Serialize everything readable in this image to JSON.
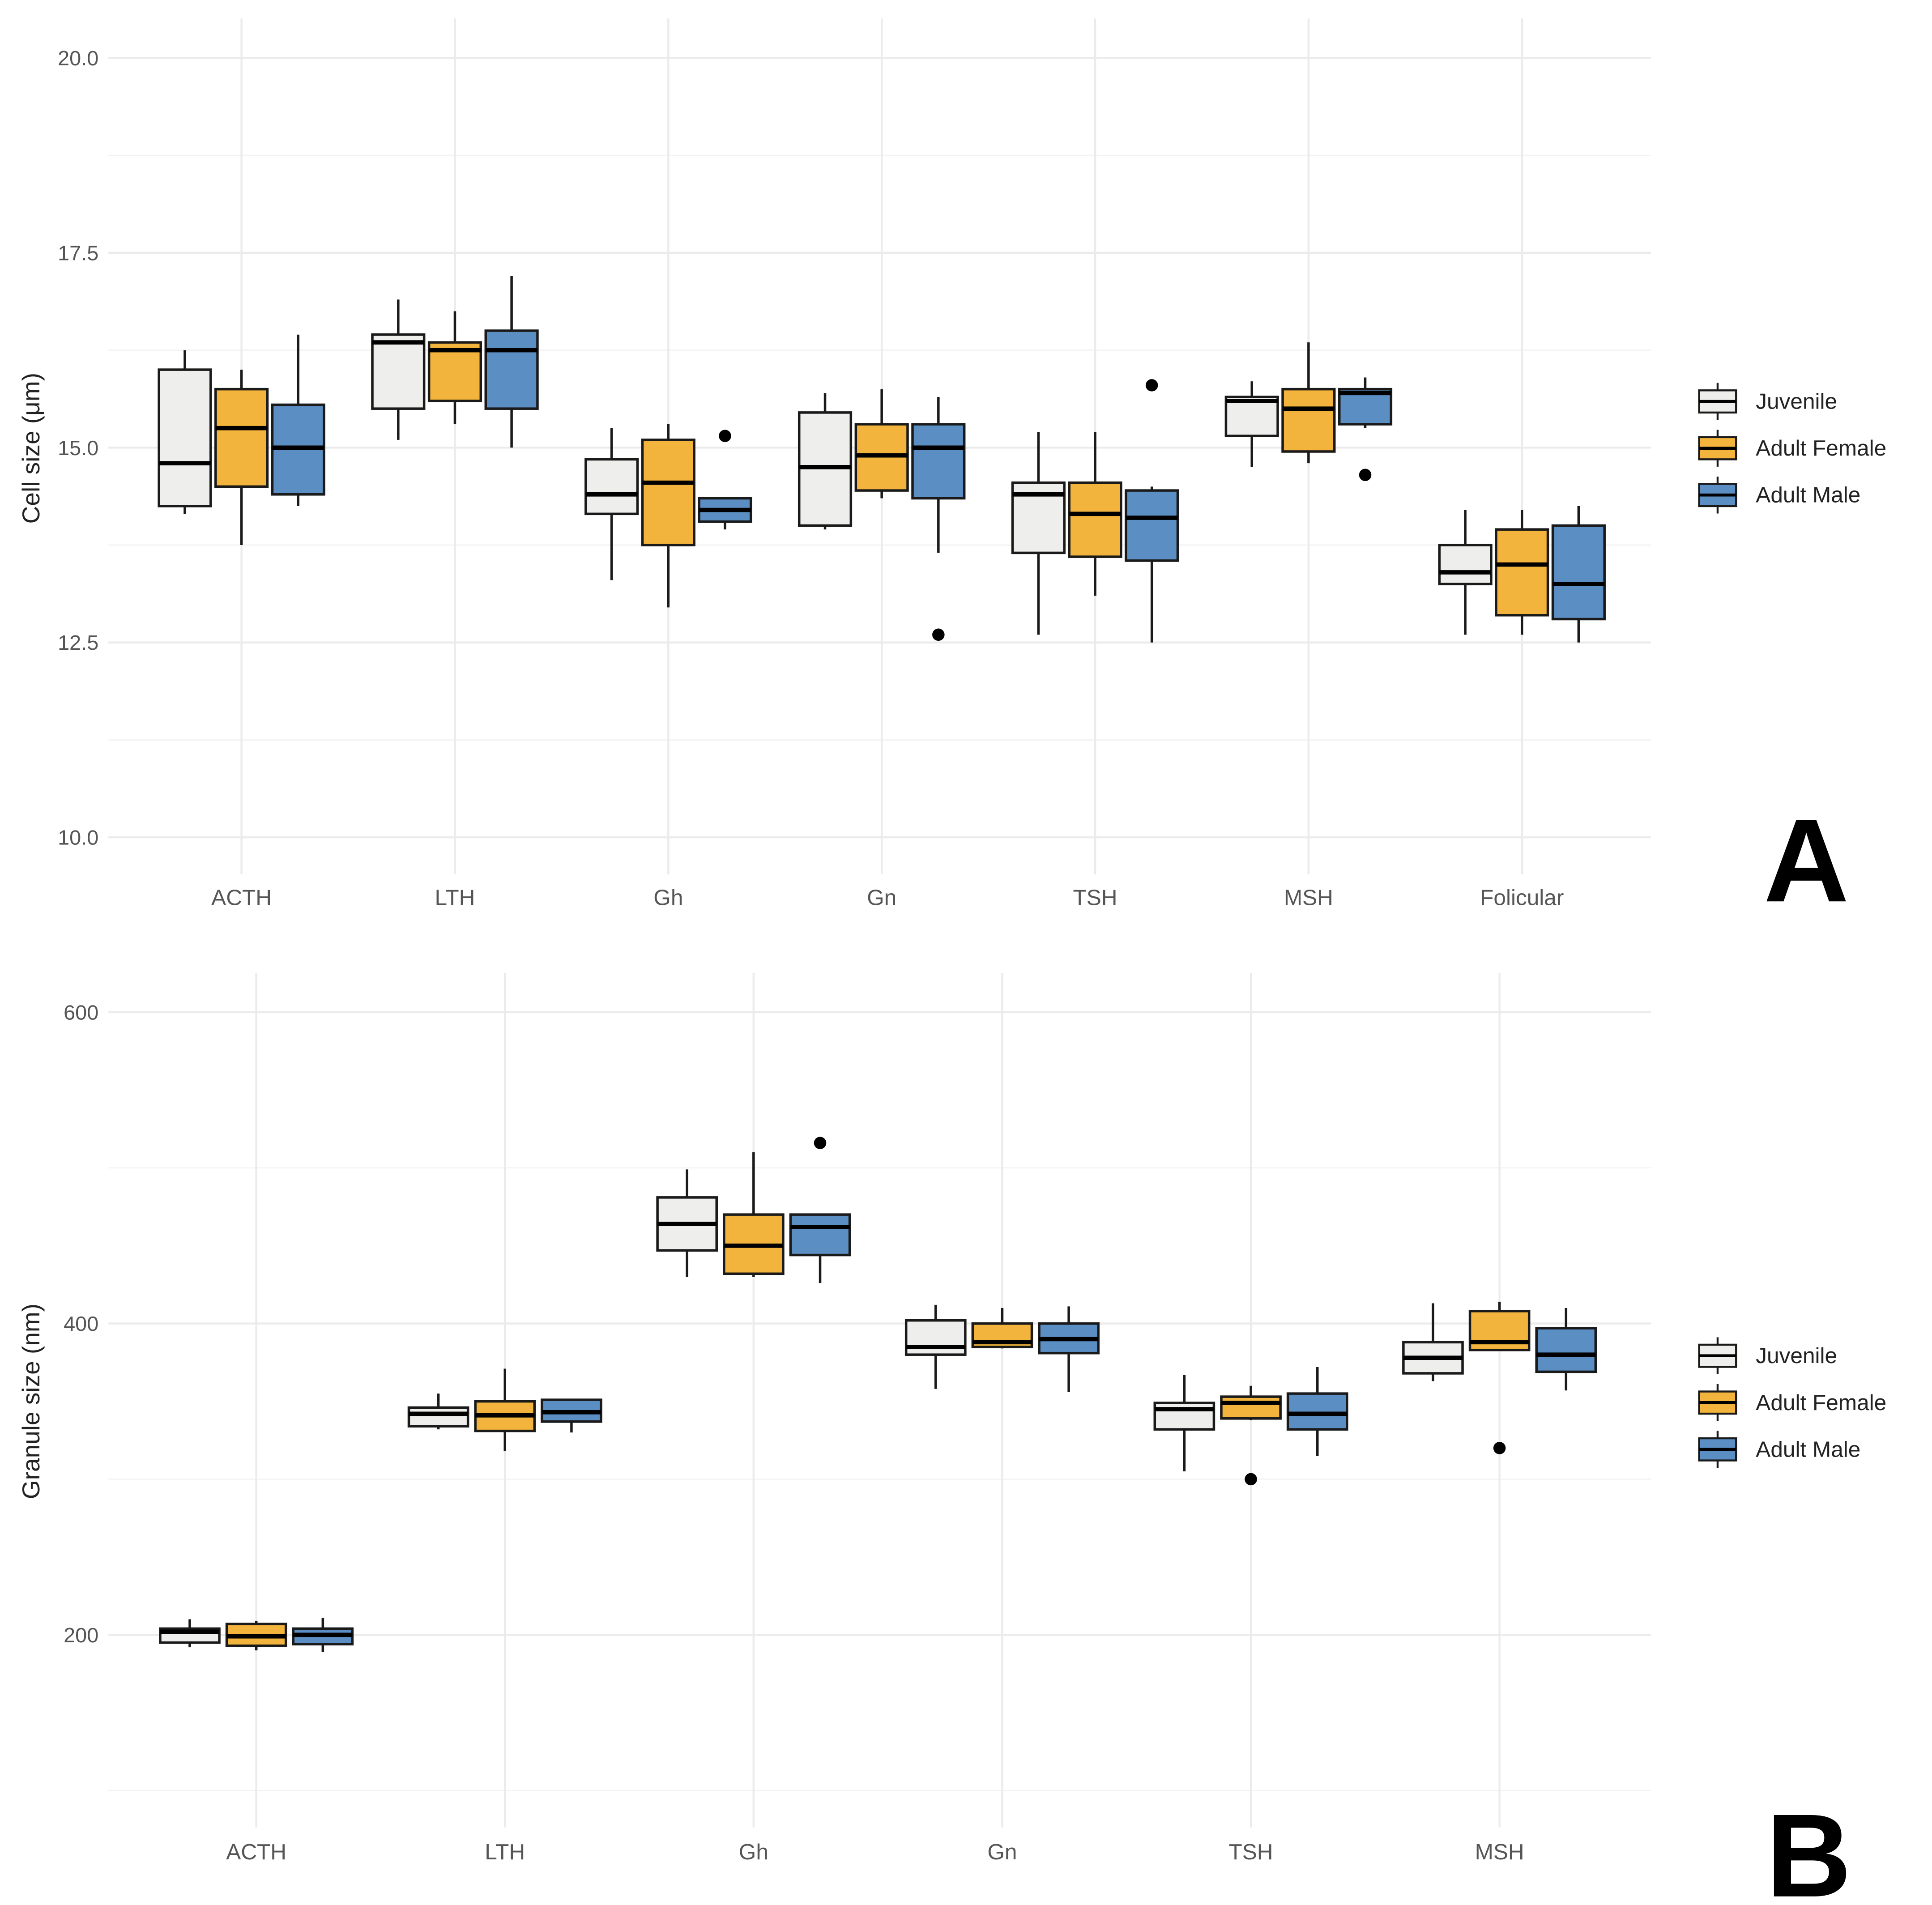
{
  "legend": {
    "entries": [
      {
        "name": "Juvenile",
        "color": "#eeeeec"
      },
      {
        "name": "Adult Female",
        "color": "#f2b43c"
      },
      {
        "name": "Adult Male",
        "color": "#5b8ec2"
      }
    ]
  },
  "chart_data": [
    {
      "type": "box",
      "panel_label": "A",
      "ylabel": "Cell size (μm)",
      "xlabel": "",
      "ylim": [
        10.0,
        20.0
      ],
      "yticks": [
        "10.0",
        "12.5",
        "15.0",
        "17.5",
        "20.0"
      ],
      "categories": [
        "ACTH",
        "LTH",
        "Gh",
        "Gn",
        "TSH",
        "MSH",
        "Folicular"
      ],
      "series": [
        {
          "name": "Juvenile",
          "boxes": [
            {
              "min": 14.15,
              "q1": 14.25,
              "median": 14.8,
              "q3": 16.0,
              "max": 16.25,
              "outliers": []
            },
            {
              "min": 15.1,
              "q1": 15.5,
              "median": 16.35,
              "q3": 16.45,
              "max": 16.9,
              "outliers": []
            },
            {
              "min": 13.3,
              "q1": 14.15,
              "median": 14.4,
              "q3": 14.85,
              "max": 15.25,
              "outliers": []
            },
            {
              "min": 13.95,
              "q1": 14.0,
              "median": 14.75,
              "q3": 15.45,
              "max": 15.7,
              "outliers": []
            },
            {
              "min": 12.6,
              "q1": 13.65,
              "median": 14.4,
              "q3": 14.55,
              "max": 15.2,
              "outliers": []
            },
            {
              "min": 14.75,
              "q1": 15.15,
              "median": 15.6,
              "q3": 15.65,
              "max": 15.85,
              "outliers": []
            },
            {
              "min": 12.6,
              "q1": 13.25,
              "median": 13.4,
              "q3": 13.75,
              "max": 14.2,
              "outliers": []
            }
          ]
        },
        {
          "name": "Adult Female",
          "boxes": [
            {
              "min": 13.75,
              "q1": 14.5,
              "median": 15.25,
              "q3": 15.75,
              "max": 16.0,
              "outliers": []
            },
            {
              "min": 15.3,
              "q1": 15.6,
              "median": 16.25,
              "q3": 16.35,
              "max": 16.75,
              "outliers": []
            },
            {
              "min": 12.95,
              "q1": 13.75,
              "median": 14.55,
              "q3": 15.1,
              "max": 15.3,
              "outliers": []
            },
            {
              "min": 14.35,
              "q1": 14.45,
              "median": 14.9,
              "q3": 15.3,
              "max": 15.75,
              "outliers": []
            },
            {
              "min": 13.1,
              "q1": 13.6,
              "median": 14.15,
              "q3": 14.55,
              "max": 15.2,
              "outliers": []
            },
            {
              "min": 14.8,
              "q1": 14.95,
              "median": 15.5,
              "q3": 15.75,
              "max": 16.35,
              "outliers": []
            },
            {
              "min": 12.6,
              "q1": 12.85,
              "median": 13.5,
              "q3": 13.95,
              "max": 14.2,
              "outliers": []
            }
          ]
        },
        {
          "name": "Adult Male",
          "boxes": [
            {
              "min": 14.25,
              "q1": 14.4,
              "median": 15.0,
              "q3": 15.55,
              "max": 16.45,
              "outliers": []
            },
            {
              "min": 15.0,
              "q1": 15.5,
              "median": 16.25,
              "q3": 16.5,
              "max": 17.2,
              "outliers": []
            },
            {
              "min": 13.95,
              "q1": 14.05,
              "median": 14.2,
              "q3": 14.35,
              "max": 14.35,
              "outliers": [
                15.15
              ]
            },
            {
              "min": 13.65,
              "q1": 14.35,
              "median": 15.0,
              "q3": 15.3,
              "max": 15.65,
              "outliers": [
                12.6
              ]
            },
            {
              "min": 12.5,
              "q1": 13.55,
              "median": 14.1,
              "q3": 14.45,
              "max": 14.5,
              "outliers": [
                15.8
              ]
            },
            {
              "min": 15.25,
              "q1": 15.3,
              "median": 15.7,
              "q3": 15.75,
              "max": 15.9,
              "outliers": [
                14.65
              ]
            },
            {
              "min": 12.5,
              "q1": 12.8,
              "median": 13.25,
              "q3": 14.0,
              "max": 14.25,
              "outliers": []
            }
          ]
        }
      ]
    },
    {
      "type": "box",
      "panel_label": "B",
      "ylabel": "Granule size (nm)",
      "xlabel": "",
      "ylim": [
        100,
        600
      ],
      "yticks": [
        "200",
        "400",
        "600"
      ],
      "categories": [
        "ACTH",
        "LTH",
        "Gh",
        "Gn",
        "TSH",
        "MSH"
      ],
      "series": [
        {
          "name": "Juvenile",
          "boxes": [
            {
              "min": 192,
              "q1": 195,
              "median": 202,
              "q3": 204,
              "max": 210,
              "outliers": []
            },
            {
              "min": 332,
              "q1": 334,
              "median": 342,
              "q3": 346,
              "max": 355,
              "outliers": []
            },
            {
              "min": 430,
              "q1": 447,
              "median": 464,
              "q3": 481,
              "max": 499,
              "outliers": []
            },
            {
              "min": 358,
              "q1": 380,
              "median": 385,
              "q3": 402,
              "max": 412,
              "outliers": []
            },
            {
              "min": 305,
              "q1": 332,
              "median": 345,
              "q3": 349,
              "max": 367,
              "outliers": []
            },
            {
              "min": 363,
              "q1": 368,
              "median": 378,
              "q3": 388,
              "max": 413,
              "outliers": []
            }
          ]
        },
        {
          "name": "Adult Female",
          "boxes": [
            {
              "min": 190,
              "q1": 193,
              "median": 199,
              "q3": 207,
              "max": 209,
              "outliers": []
            },
            {
              "min": 318,
              "q1": 331,
              "median": 341,
              "q3": 350,
              "max": 371,
              "outliers": []
            },
            {
              "min": 430,
              "q1": 432,
              "median": 450,
              "q3": 470,
              "max": 510,
              "outliers": []
            },
            {
              "min": 384,
              "q1": 385,
              "median": 388,
              "q3": 400,
              "max": 410,
              "outliers": []
            },
            {
              "min": 338,
              "q1": 339,
              "median": 349,
              "q3": 353,
              "max": 360,
              "outliers": [
                300
              ]
            },
            {
              "min": 383,
              "q1": 383,
              "median": 388,
              "q3": 408,
              "max": 414,
              "outliers": [
                320
              ]
            }
          ]
        },
        {
          "name": "Adult Male",
          "boxes": [
            {
              "min": 189,
              "q1": 194,
              "median": 200,
              "q3": 204,
              "max": 211,
              "outliers": []
            },
            {
              "min": 330,
              "q1": 337,
              "median": 343,
              "q3": 351,
              "max": 351,
              "outliers": []
            },
            {
              "min": 426,
              "q1": 444,
              "median": 462,
              "q3": 470,
              "max": 470,
              "outliers": [
                516
              ]
            },
            {
              "min": 356,
              "q1": 381,
              "median": 390,
              "q3": 400,
              "max": 411,
              "outliers": []
            },
            {
              "min": 315,
              "q1": 332,
              "median": 342,
              "q3": 355,
              "max": 372,
              "outliers": []
            },
            {
              "min": 357,
              "q1": 369,
              "median": 380,
              "q3": 397,
              "max": 410,
              "outliers": []
            }
          ]
        }
      ]
    }
  ]
}
